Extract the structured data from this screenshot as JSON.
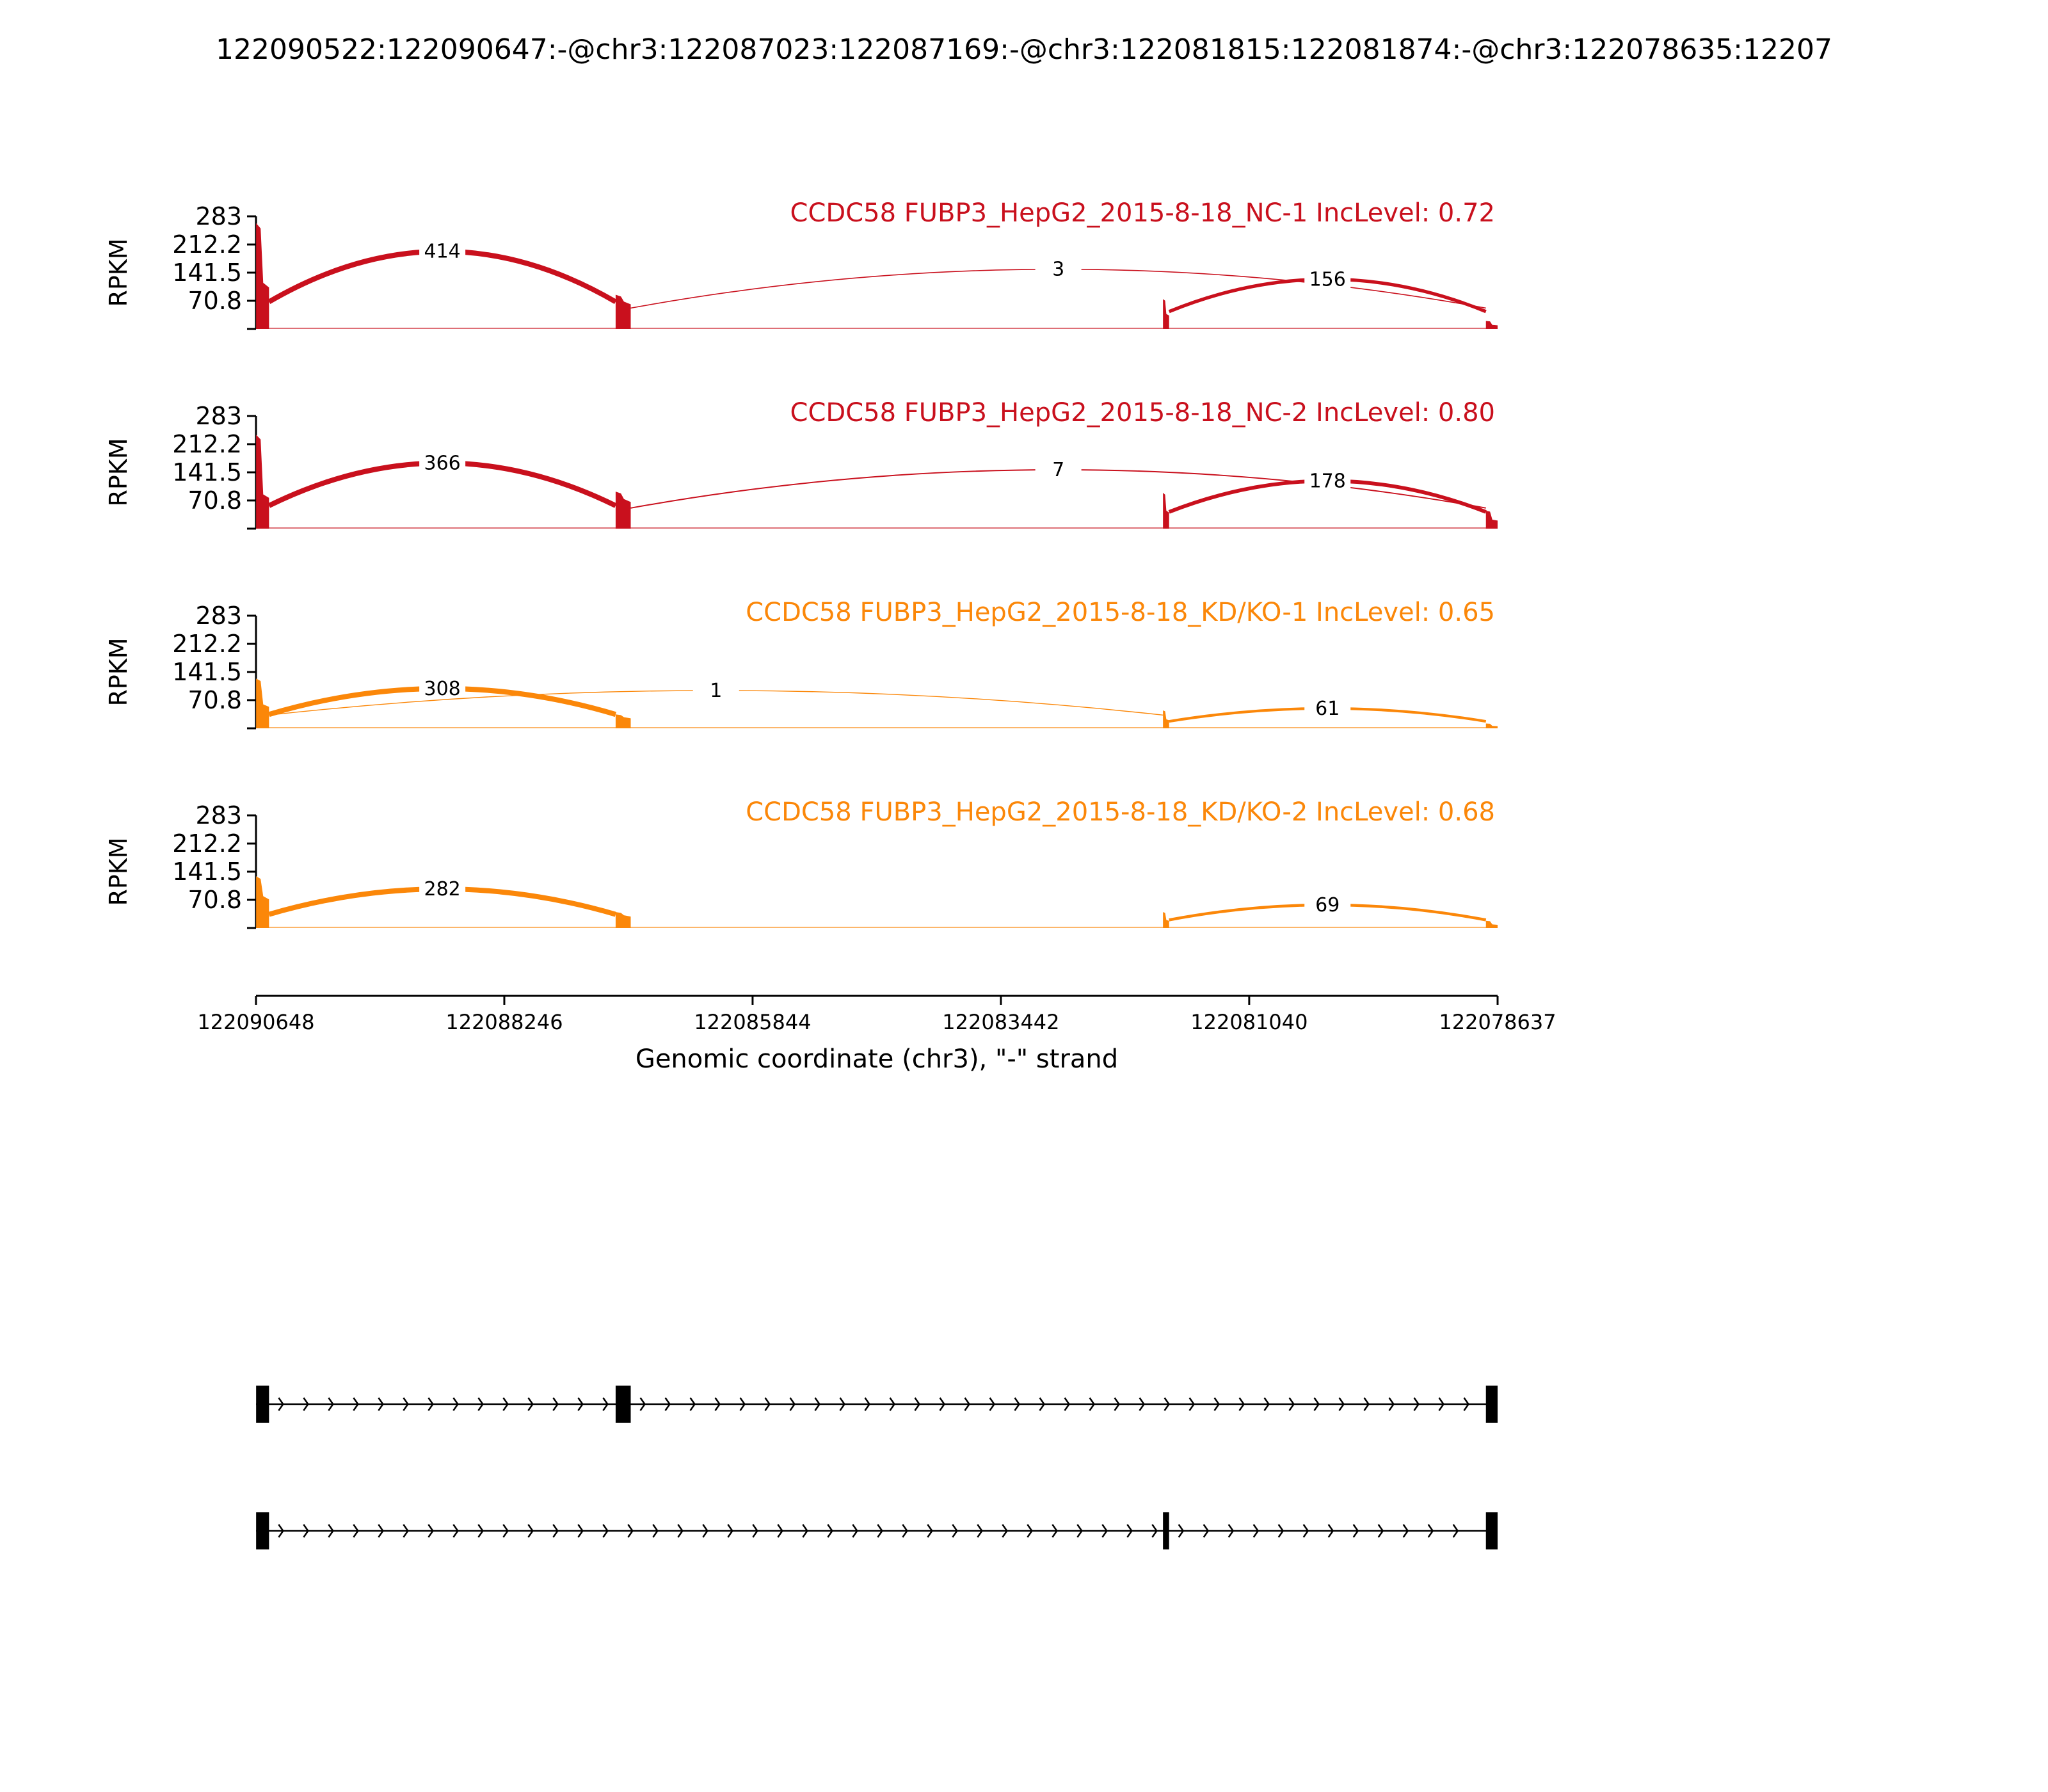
{
  "figure_title": "122090522:122090647:-@chr3:122087023:122087169:-@chr3:122081815:122081874:-@chr3:122078635:12207",
  "colors": {
    "nc": "#c9101d",
    "kd": "#fb8709",
    "black": "#000000"
  },
  "chart_data": {
    "type": "sashimi",
    "xlabel": "Genomic coordinate (chr3), \"-\" strand",
    "ylabel": "RPKM",
    "ylim": [
      0,
      283
    ],
    "yticks": [
      "70.8",
      "141.5",
      "212.2",
      "283"
    ],
    "xlim": [
      122090648,
      122078637
    ],
    "xticks": [
      "122090648",
      "122088246",
      "122085844",
      "122083442",
      "122081040",
      "122078637"
    ],
    "exons": [
      {
        "start": 122090647,
        "end": 122090522
      },
      {
        "start": 122087169,
        "end": 122087023
      },
      {
        "start": 122081874,
        "end": 122081815
      },
      {
        "start": 122078750,
        "end": 122078637
      }
    ],
    "tracks": [
      {
        "label": "CCDC58 FUBP3_HepG2_2015-8-18_NC-1 IncLevel: 0.72",
        "color": "#c9101d",
        "coverage_peaks": [
          266,
          116,
          86,
          75,
          20
        ],
        "junctions": [
          {
            "from": 122090522,
            "to": 122087169,
            "count": "414",
            "peak": 195
          },
          {
            "from": 122087023,
            "to": 122078750,
            "count": "3",
            "peak": 150
          },
          {
            "from": 122081815,
            "to": 122078750,
            "count": "156",
            "peak": 125
          }
        ]
      },
      {
        "label": "CCDC58 FUBP3_HepG2_2015-8-18_NC-2 IncLevel: 0.80",
        "color": "#c9101d",
        "coverage_peaks": [
          236,
          86,
          93,
          90,
          45
        ],
        "junctions": [
          {
            "from": 122090522,
            "to": 122087169,
            "count": "366",
            "peak": 165
          },
          {
            "from": 122087023,
            "to": 122078750,
            "count": "7",
            "peak": 148
          },
          {
            "from": 122081815,
            "to": 122078750,
            "count": "178",
            "peak": 120
          }
        ]
      },
      {
        "label": "CCDC58 FUBP3_HepG2_2015-8-18_KD/KO-1 IncLevel: 0.65",
        "color": "#fb8709",
        "coverage_peaks": [
          125,
          60,
          35,
          45,
          12
        ],
        "junctions": [
          {
            "from": 122090522,
            "to": 122087169,
            "count": "308",
            "peak": 100
          },
          {
            "from": 122090522,
            "to": 122081874,
            "count": "1",
            "peak": 95
          },
          {
            "from": 122081815,
            "to": 122078750,
            "count": "61",
            "peak": 50
          }
        ]
      },
      {
        "label": "CCDC58 FUBP3_HepG2_2015-8-18_KD/KO-2 IncLevel: 0.68",
        "color": "#fb8709",
        "coverage_peaks": [
          130,
          80,
          40,
          40,
          18
        ],
        "junctions": [
          {
            "from": 122090522,
            "to": 122087169,
            "count": "282",
            "peak": 98
          },
          {
            "from": 122081815,
            "to": 122078750,
            "count": "69",
            "peak": 58
          }
        ]
      }
    ],
    "isoforms": [
      {
        "exons": [
          0,
          1,
          3
        ]
      },
      {
        "exons": [
          0,
          2,
          3
        ]
      }
    ]
  }
}
